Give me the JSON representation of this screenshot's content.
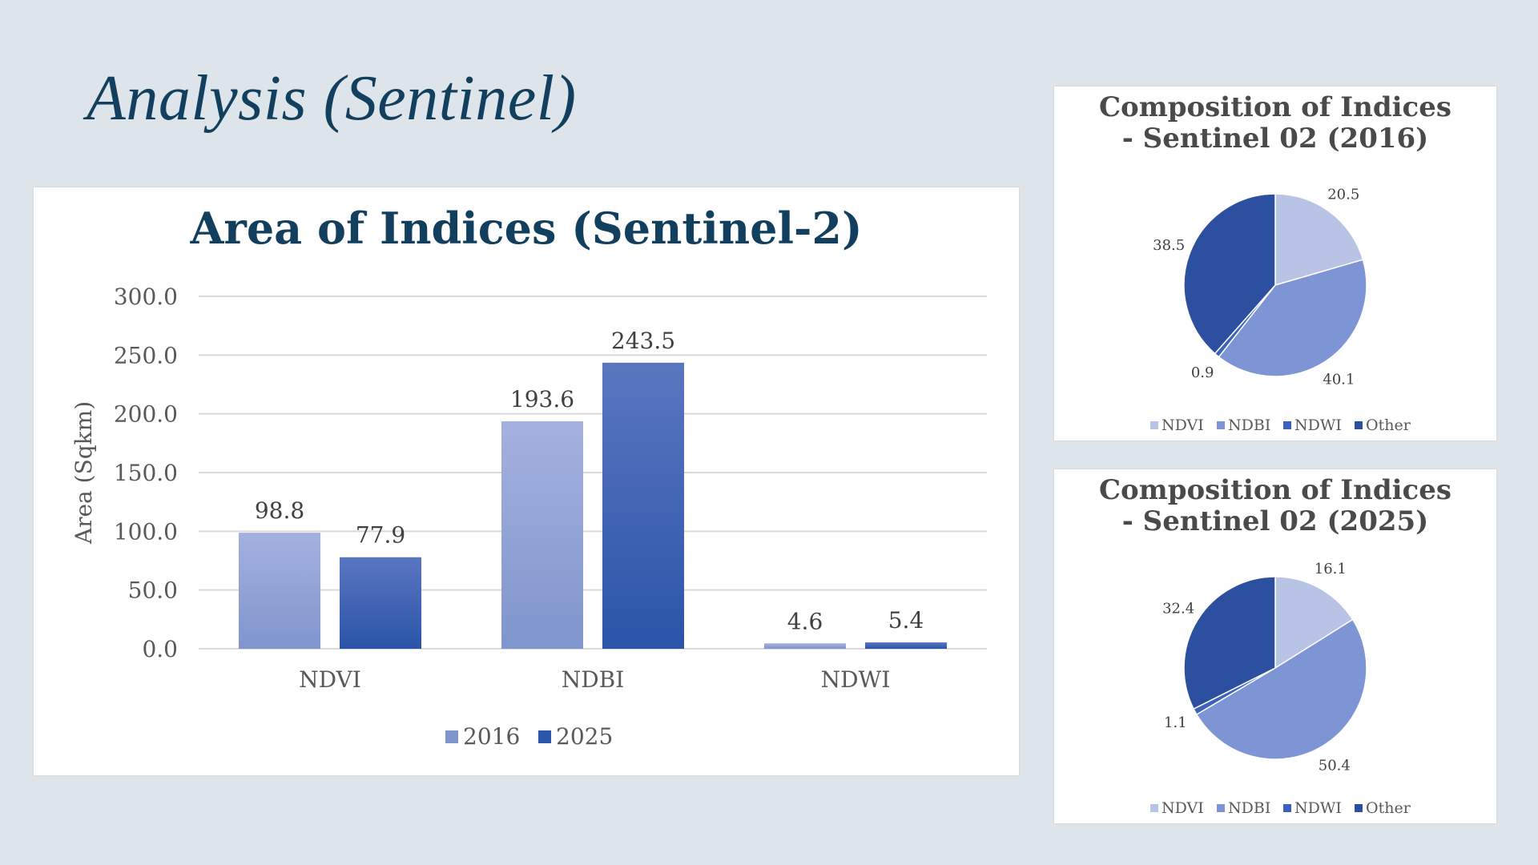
{
  "slide": {
    "title": "Analysis (Sentinel)"
  },
  "colors": {
    "s2016_top": "#a4b1de",
    "s2016_bottom": "#7f95cd",
    "s2025_top": "#5a76c0",
    "s2025_bottom": "#2a54a8",
    "pie_ndvi": "#b9c3e6",
    "pie_ndbi": "#7d94d5",
    "pie_ndwi": "#3d62be",
    "pie_other": "#2d4f9f",
    "title_text": "#123f5d",
    "axis_text": "#595959",
    "grid": "#d9d9d9"
  },
  "chart_data": [
    {
      "type": "bar",
      "title": "Area of Indices (Sentinel-2)",
      "xlabel": "",
      "ylabel": "Area (Sqkm)",
      "categories": [
        "NDVI",
        "NDBI",
        "NDWI"
      ],
      "series": [
        {
          "name": "2016",
          "values": [
            98.8,
            193.6,
            4.6
          ],
          "labels": [
            "98.8",
            "193.6",
            "4.6"
          ]
        },
        {
          "name": "2025",
          "values": [
            77.9,
            243.5,
            5.4
          ],
          "labels": [
            "77.9",
            "243.5",
            "5.4"
          ]
        }
      ],
      "ylim": [
        0,
        300
      ],
      "yticks": [
        "0.0",
        "50.0",
        "100.0",
        "150.0",
        "200.0",
        "250.0",
        "300.0"
      ],
      "grid": true,
      "legend": "bottom"
    },
    {
      "type": "pie",
      "title": "Composition of Indices - Sentinel 02 (2016)",
      "title_lines": [
        "Composition of Indices",
        "- Sentinel 02 (2016)"
      ],
      "labels": [
        "NDVI",
        "NDBI",
        "NDWI",
        "Other"
      ],
      "values": [
        20.5,
        40.1,
        0.9,
        38.5
      ],
      "value_labels": [
        "20.5",
        "40.1",
        "0.9",
        "38.5"
      ],
      "legend": "bottom"
    },
    {
      "type": "pie",
      "title": "Composition of Indices - Sentinel 02 (2025)",
      "title_lines": [
        "Composition of Indices",
        "- Sentinel 02 (2025)"
      ],
      "labels": [
        "NDVI",
        "NDBI",
        "NDWI",
        "Other"
      ],
      "values": [
        16.1,
        50.4,
        1.1,
        32.4
      ],
      "value_labels": [
        "16.1",
        "50.4",
        "1.1",
        "32.4"
      ],
      "legend": "bottom"
    }
  ]
}
